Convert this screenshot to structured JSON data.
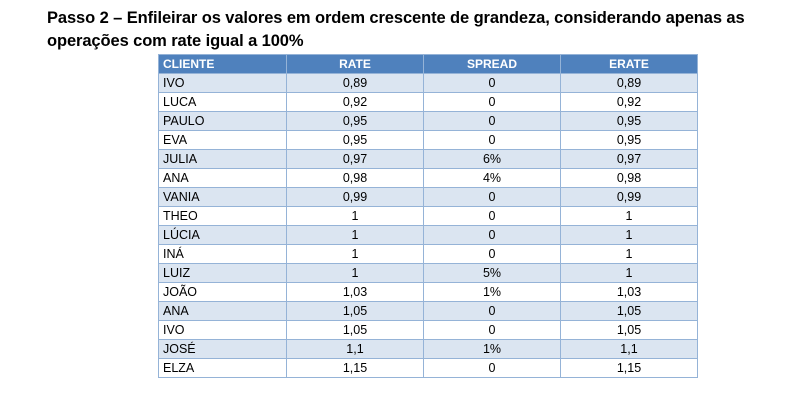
{
  "heading": "Passo 2 – Enfileirar os valores em ordem crescente de grandeza, considerando apenas as operações com rate igual a 100%",
  "table": {
    "headers": [
      "CLIENTE",
      "RATE",
      "SPREAD",
      "ERATE"
    ],
    "rows": [
      [
        "IVO",
        "0,89",
        "0",
        "0,89"
      ],
      [
        "LUCA",
        "0,92",
        "0",
        "0,92"
      ],
      [
        "PAULO",
        "0,95",
        "0",
        "0,95"
      ],
      [
        "EVA",
        "0,95",
        "0",
        "0,95"
      ],
      [
        "JULIA",
        "0,97",
        "6%",
        "0,97"
      ],
      [
        "ANA",
        "0,98",
        "4%",
        "0,98"
      ],
      [
        "VANIA",
        "0,99",
        "0",
        "0,99"
      ],
      [
        "THEO",
        "1",
        "0",
        "1"
      ],
      [
        "LÚCIA",
        "1",
        "0",
        "1"
      ],
      [
        "INÁ",
        "1",
        "0",
        "1"
      ],
      [
        "LUIZ",
        "1",
        "5%",
        "1"
      ],
      [
        "JOÃO",
        "1,03",
        "1%",
        "1,03"
      ],
      [
        "ANA",
        "1,05",
        "0",
        "1,05"
      ],
      [
        "IVO",
        "1,05",
        "0",
        "1,05"
      ],
      [
        "JOSÉ",
        "1,1",
        "1%",
        "1,1"
      ],
      [
        "ELZA",
        "1,15",
        "0",
        "1,15"
      ]
    ]
  },
  "colors": {
    "header_bg": "#4f81bd",
    "header_text": "#ffffff",
    "row_shade": "#dbe5f1",
    "border": "#95b3d7"
  }
}
